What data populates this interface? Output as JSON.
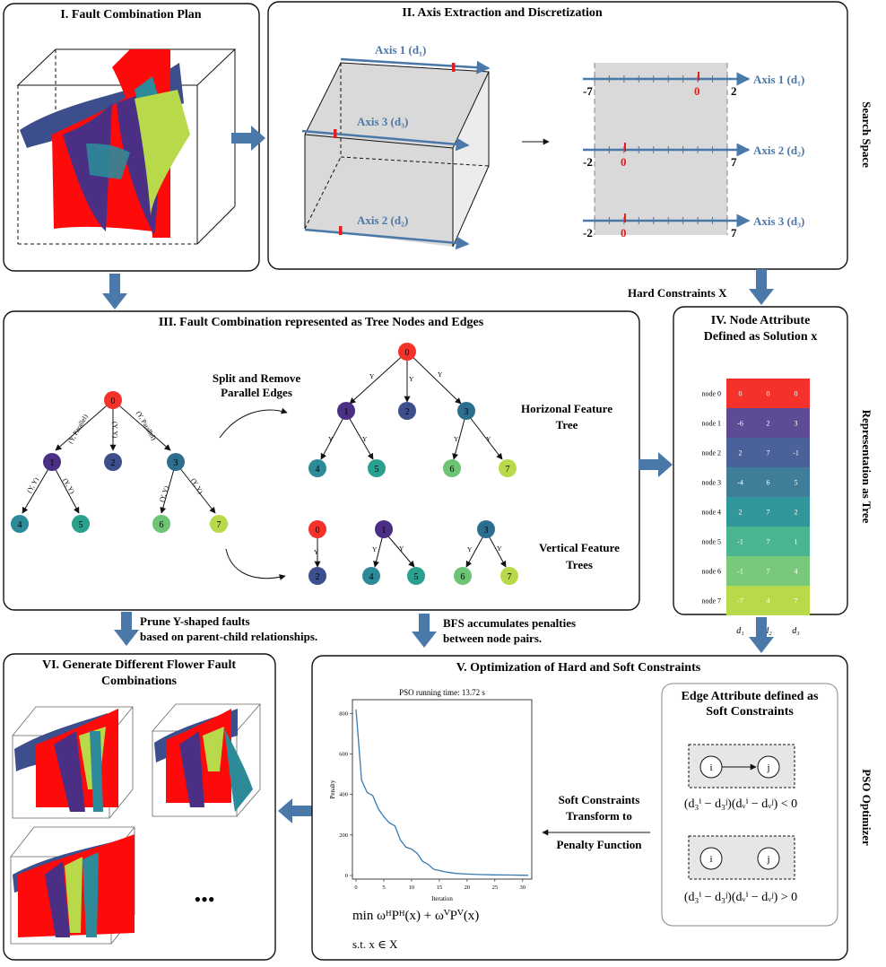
{
  "panels": {
    "p1": {
      "title": "I. Fault Combination Plan"
    },
    "p2": {
      "title": "II. Axis Extraction and Discretization"
    },
    "p3": {
      "title": "III. Fault Combination represented as Tree Nodes and Edges"
    },
    "p4": {
      "title_line1": "IV. Node Attribute",
      "title_line2": "Defined as Solution x"
    },
    "p5": {
      "title": "V. Optimization of Hard and Soft Constraints"
    },
    "p6": {
      "title_line1": "VI. Generate Different Flower Fault",
      "title_line2": "Combinations"
    }
  },
  "side_labels": {
    "search_space": "Search Space",
    "representation": "Representation as Tree",
    "pso": "PSO Optimizer"
  },
  "arrows": {
    "hard_constraints": "Hard Constraints X",
    "prune_line1": "Prune Y-shaped faults",
    "prune_line2": "based on parent-child relationships.",
    "bfs_line1": "BFS accumulates penalties",
    "bfs_line2": "between node pairs.",
    "soft_line1": "Soft Constraints",
    "soft_line2": "Transform to",
    "soft_line3": "Penalty Function"
  },
  "axes_3d": {
    "axis1": "Axis 1 (d₁)",
    "axis2": "Axis 2 (d₂)",
    "axis3": "Axis 3 (d₃)"
  },
  "axes_disc": {
    "axis1": {
      "label": "Axis 1 (d₁)",
      "min": "-7",
      "max": "2",
      "zero": "0"
    },
    "axis2": {
      "label": "Axis 2 (d₂)",
      "min": "-2",
      "max": "7",
      "zero": "0"
    },
    "axis3": {
      "label": "Axis 3 (d₃)",
      "min": "-2",
      "max": "7",
      "zero": "0"
    }
  },
  "tree": {
    "split_line1": "Split and Remove",
    "split_line2": "Parallel  Edges",
    "horizontal_line1": "Horizonal Feature",
    "horizontal_line2": "Tree",
    "vertical_line1": "Vertical Feature",
    "vertical_line2": "Trees",
    "nodes": [
      "0",
      "1",
      "2",
      "3",
      "4",
      "5",
      "6",
      "7"
    ],
    "edge_labels": {
      "e01": "(Y, Parallel)",
      "e02": "(Y, Y)",
      "e03": "(Y, Parallel)",
      "e14": "(Y, Y)",
      "e15": "(Y, Y)",
      "e36": "(Y, Y)",
      "e37": "(Y, Y)",
      "y": "Y"
    }
  },
  "node_table": {
    "rows": [
      {
        "name": "node 0",
        "vals": [
          "0",
          "0",
          "0"
        ],
        "color": "#f4312a"
      },
      {
        "name": "node 1",
        "vals": [
          "-6",
          "2",
          "3"
        ],
        "color": "#5e4b95"
      },
      {
        "name": "node 2",
        "vals": [
          "2",
          "7",
          "-1"
        ],
        "color": "#4a6199"
      },
      {
        "name": "node 3",
        "vals": [
          "-4",
          "6",
          "5"
        ],
        "color": "#3f7d98"
      },
      {
        "name": "node 4",
        "vals": [
          "2",
          "7",
          "2"
        ],
        "color": "#31979b"
      },
      {
        "name": "node 5",
        "vals": [
          "-1",
          "7",
          "1"
        ],
        "color": "#4bb58f"
      },
      {
        "name": "node 6",
        "vals": [
          "-1",
          "7",
          "4"
        ],
        "color": "#7ac97a"
      },
      {
        "name": "node 7",
        "vals": [
          "-7",
          "4",
          "7"
        ],
        "color": "#b7d94a"
      }
    ],
    "cols": [
      "d₁",
      "d₂",
      "d₃"
    ]
  },
  "chart_data": {
    "type": "line",
    "title": "PSO running time: 13.72 s",
    "xlabel": "Iteration",
    "ylabel": "Penalty",
    "xlim": [
      0,
      31
    ],
    "ylim": [
      0,
      850
    ],
    "xticks": [
      "0",
      "5",
      "10",
      "15",
      "20",
      "25",
      "30"
    ],
    "yticks": [
      "0",
      "200",
      "400",
      "600",
      "800"
    ],
    "series": [
      {
        "x": [
          0,
          1,
          2,
          3,
          4,
          5,
          6,
          7,
          8,
          9,
          10,
          11,
          12,
          13,
          14,
          15,
          16,
          17,
          18,
          20,
          22,
          25,
          28,
          31
        ],
        "y": [
          820,
          470,
          410,
          395,
          330,
          290,
          260,
          245,
          175,
          140,
          130,
          110,
          70,
          55,
          30,
          25,
          18,
          14,
          10,
          7,
          5,
          3,
          2,
          1
        ]
      }
    ]
  },
  "soft": {
    "title_line1": "Edge Attribute defined as",
    "title_line2": "Soft Constraints",
    "i": "i",
    "j": "j",
    "formula1": "(d₃ⁱ − d₃ʲ)(dᵥⁱ − dᵥʲ) < 0",
    "formula2": "(d₃ⁱ − d₃ʲ)(dᵥⁱ − dᵥʲ) > 0"
  },
  "objective": {
    "line1": "min  ωᴴPᴴ(x) + ωⱽPⱽ(x)",
    "line2": "s.t. x ∈ X"
  },
  "ellipsis": "•••",
  "colors": {
    "arrow": "#4a78a8",
    "red": "#f4312a",
    "navy": "#3c4e8c",
    "green": "#b7d94a",
    "teal": "#2d8a99",
    "purple": "#4b2f84"
  }
}
